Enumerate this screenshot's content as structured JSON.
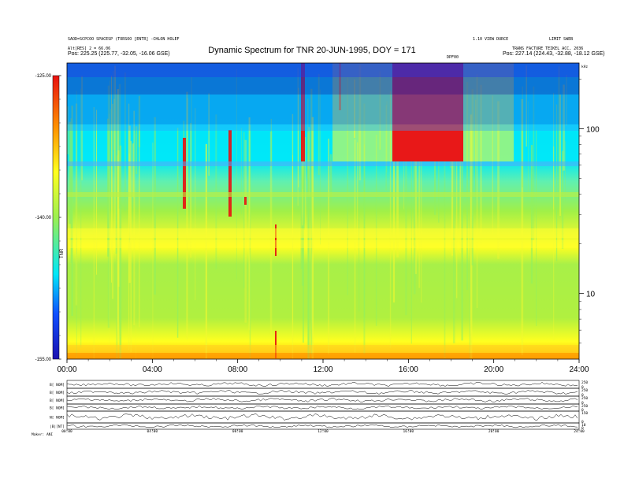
{
  "header": {
    "left_line1": "SAOD=SCPCOO SPACESP (TORSOO [ENTR] -CHLON HOLEF",
    "left_line2": "Alt[RES] 2 = 66.06",
    "left_line3": "Pos: 225.25 (225.77, -32.05, -16.06 GSE)",
    "right_line1": "1.10 VIEW DURCE",
    "right_line2": "LIMIT SWEB",
    "right_line3": "TRANS FACTURE TEIKEL ACC, 2036",
    "right_line4": "Pos: 227.14 (224.43, -32.88, -18.12 GSE)",
    "marker": "DPF00"
  },
  "chart_data": {
    "type": "heatmap",
    "title": "Dynamic Spectrum for TNR 20-JUN-1995, DOY = 171",
    "x_tick_labels": [
      "00:00",
      "04:00",
      "08:00",
      "12:00",
      "16:00",
      "20:00",
      "24:00"
    ],
    "x_ticks_hours": [
      0,
      4,
      8,
      12,
      16,
      20,
      24
    ],
    "xlim_hours": [
      0,
      24
    ],
    "y_tick_labels": [
      "100",
      "10"
    ],
    "y_ticks": [
      100,
      10
    ],
    "ylim": [
      4,
      250
    ],
    "y_unit": "kHz",
    "y_scale": "log",
    "colorbar": {
      "tick_labels": [
        "-125.00",
        "-140.00",
        "-155.00"
      ],
      "ticks": [
        -125,
        -140,
        -155
      ],
      "range": [
        -155,
        -125
      ],
      "label": "TNR"
    },
    "colors": {
      "low": "#1010b0",
      "cyan": "#00e8f8",
      "green": "#9cf050",
      "yellow": "#ffff20",
      "orange": "#ff9000",
      "red": "#e81010"
    }
  },
  "subpanels": {
    "labels": [
      "B[ NOM]",
      "B[ NOM]",
      "B[ NOM]",
      "B[ NOM]",
      "N[ NOM]",
      "|B|[NT]"
    ],
    "right_labels": [
      "250",
      "0",
      "250",
      "0",
      "250",
      "0",
      "250",
      "0",
      "150",
      "0",
      "10",
      "0"
    ],
    "x_tick_labels": [
      "00:00",
      "04:00",
      "08:00",
      "12:00",
      "16:00",
      "20:00",
      "24:00"
    ],
    "footer_label": "Maker: ANI"
  }
}
